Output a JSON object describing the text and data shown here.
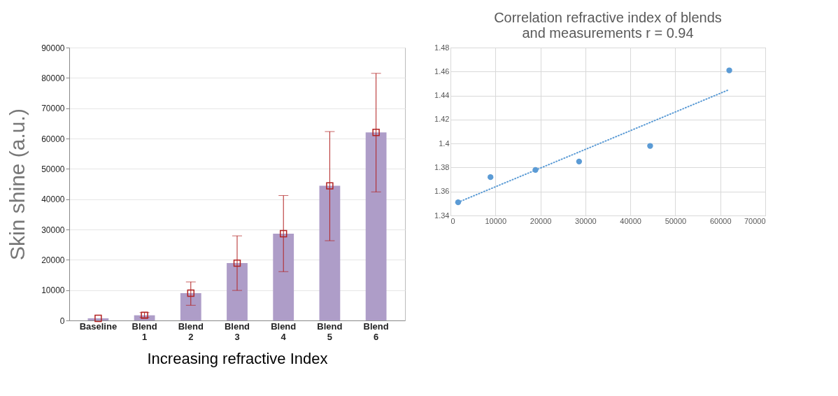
{
  "chart_data": [
    {
      "type": "bar",
      "ylabel": "Skin shine (a.u.)",
      "xlabel": "Increasing refractive Index",
      "categories": [
        "Baseline",
        "Blend 1",
        "Blend 2",
        "Blend 3",
        "Blend 4",
        "Blend 5",
        "Blend 6"
      ],
      "series": [
        {
          "type": "bar",
          "color": "#ae9dc8",
          "values": [
            700,
            1700,
            9000,
            18900,
            28600,
            44400,
            62000
          ],
          "errors": [
            null,
            [
              1000,
              2600
            ],
            [
              5000,
              12700
            ],
            [
              9900,
              27900
            ],
            [
              16100,
              41200
            ],
            [
              26300,
              62300
            ],
            [
              42400,
              81500
            ]
          ]
        },
        {
          "type": "scatter",
          "color": "#b22222",
          "marker": "square",
          "x": [
            "Baseline",
            "Blend 1",
            "Blend 2",
            "Blend 3",
            "Blend 4",
            "Blend 5",
            "Blend 6"
          ],
          "values": [
            700,
            1700,
            9000,
            18900,
            28600,
            44400,
            62000
          ]
        }
      ],
      "ylim": [
        0,
        90000
      ],
      "yticks": [
        0,
        10000,
        20000,
        30000,
        40000,
        50000,
        60000,
        70000,
        80000,
        90000
      ],
      "grid": "y"
    },
    {
      "type": "scatter",
      "title": "Correlation refractive index of blends and measurements r = 0.94",
      "series": [
        {
          "type": "scatter",
          "color": "#5b9bd5",
          "marker": "circle",
          "x": [
            1700,
            8900,
            18900,
            28600,
            44400,
            62000
          ],
          "values": [
            1.351,
            1.372,
            1.378,
            1.385,
            1.398,
            1.461
          ]
        },
        {
          "type": "line",
          "color": "#5b9bd5",
          "line_style": "dotted",
          "x": [
            1700,
            62000
          ],
          "values": [
            1.351,
            1.445
          ]
        }
      ],
      "xlim": [
        0,
        70000
      ],
      "xticks": [
        0,
        10000,
        20000,
        30000,
        40000,
        50000,
        60000,
        70000
      ],
      "ylim": [
        1.34,
        1.48
      ],
      "yticks": [
        1.34,
        1.36,
        1.38,
        1.4,
        1.42,
        1.44,
        1.46,
        1.48
      ],
      "grid": true
    }
  ]
}
